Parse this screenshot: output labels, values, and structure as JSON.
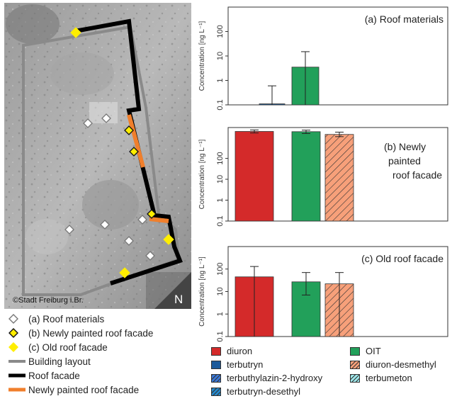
{
  "map": {
    "credit": "©Stadt Freiburg i.Br.",
    "north_label": "N",
    "legend": [
      {
        "symbol": "diamond-hollow",
        "label": "(a) Roof materials"
      },
      {
        "symbol": "diamond-yellow-outlined",
        "label": "(b) Newly painted roof facade"
      },
      {
        "symbol": "diamond-yellow",
        "label": "(c) Old roof facade"
      },
      {
        "symbol": "line-gray",
        "label": "Building layout"
      },
      {
        "symbol": "line-black",
        "label": "Roof facade"
      },
      {
        "symbol": "line-orange",
        "label": "Newly painted roof facade"
      }
    ],
    "colors": {
      "building": "#8a8a8a",
      "facade": "#000000",
      "painted": "#f07f2c",
      "marker": "#ffee00"
    }
  },
  "chart_data": [
    {
      "type": "bar",
      "panel": "(a)",
      "annotation": "(a) Roof materials",
      "ylabel": "Concentration [ng L⁻¹]",
      "yscale": "log",
      "ylim": [
        0.1,
        1000
      ],
      "yticks": [
        "0.1",
        "1",
        "10",
        "100"
      ],
      "categories": [
        "diuron",
        "terbutryn",
        "OIT",
        "diuron-desmethyl"
      ],
      "values": [
        null,
        0.11,
        3.5,
        null
      ],
      "error_high": [
        null,
        0.6,
        15,
        null
      ],
      "error_low": [
        null,
        0.1,
        0.1,
        null
      ]
    },
    {
      "type": "bar",
      "panel": "(b)",
      "annotation": [
        "(b) Newly",
        "painted",
        "roof facade"
      ],
      "ylabel": "Concentration [ng L⁻¹]",
      "yscale": "log",
      "ylim": [
        0.1,
        3000
      ],
      "yticks": [
        "0.1",
        "1",
        "10",
        "100"
      ],
      "categories": [
        "diuron",
        "terbutryn",
        "OIT",
        "diuron-desmethyl"
      ],
      "values": [
        1950,
        null,
        1900,
        1400
      ],
      "error_high": [
        2300,
        null,
        2250,
        1800
      ],
      "error_low": [
        1650,
        null,
        1550,
        1100
      ]
    },
    {
      "type": "bar",
      "panel": "(c)",
      "annotation": "(c) Old roof facade",
      "ylabel": "Concentration [ng L⁻¹]",
      "yscale": "log",
      "ylim": [
        0.1,
        1000
      ],
      "yticks": [
        "0.1",
        "1",
        "10",
        "100"
      ],
      "categories": [
        "diuron",
        "terbutryn",
        "OIT",
        "diuron-desmethyl"
      ],
      "values": [
        45,
        null,
        27,
        22
      ],
      "error_high": [
        130,
        null,
        70,
        70
      ],
      "error_low": [
        0.1,
        null,
        7,
        0.1
      ]
    }
  ],
  "chart_legend": [
    {
      "label": "diuron",
      "color": "#d42a2a",
      "hatch": false
    },
    {
      "label": "OIT",
      "color": "#22a05a",
      "hatch": false
    },
    {
      "label": "terbutryn",
      "color": "#1c5a9a",
      "hatch": false
    },
    {
      "label": "diuron-desmethyl",
      "color": "#f7a07a",
      "hatch": true
    },
    {
      "label": "terbuthylazin-2-hydroxy",
      "color": "#3a78d8",
      "hatch": true
    },
    {
      "label": "terbumeton",
      "color": "#9ee7ea",
      "hatch": true
    },
    {
      "label": "terbutryn-desethyl",
      "color": "#2488cc",
      "hatch": true
    }
  ],
  "series_colors": {
    "diuron": "#d42a2a",
    "terbutryn": "#1c5a9a",
    "OIT": "#22a05a",
    "diuron-desmethyl": "#f7a07a"
  }
}
